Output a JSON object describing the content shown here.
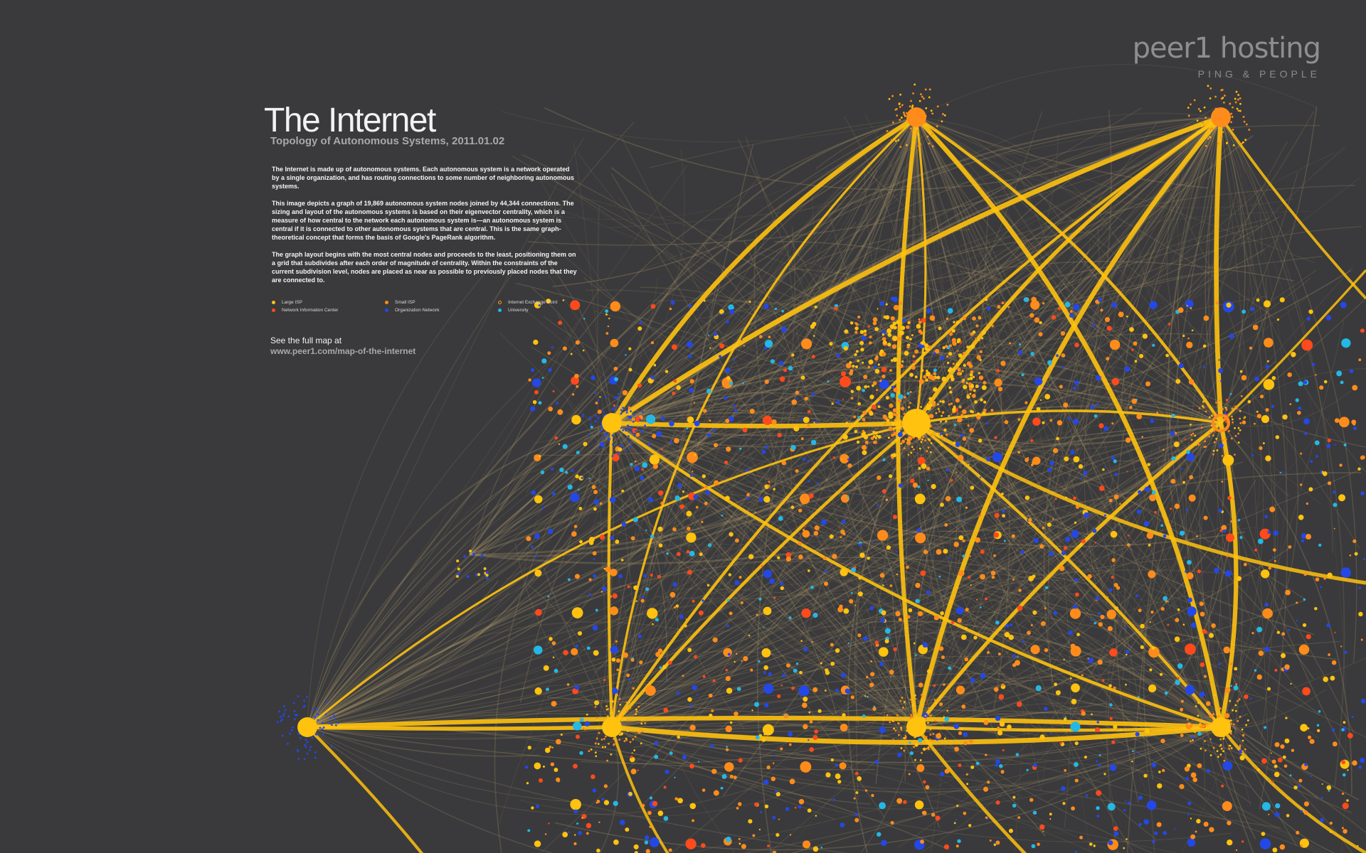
{
  "logo": {
    "wordmark": "peer1 hosting",
    "tagline": "PING & PEOPLE"
  },
  "title": "The Internet",
  "subtitle": "Topology of Autonomous Systems, 2011.01.02",
  "paragraphs": [
    "The Internet is made up of autonomous systems. Each autonomous system is a network operated by a single organization, and has routing connections to some number of neighboring autonomous systems.",
    "This image depicts a graph of 19,869 autonomous system nodes joined by 44,344 connections. The sizing and layout of the autonomous systems is based on their eigenvector centrality, which is a measure of how central to the network each autonomous system is—an autonomous system is central if it is connected to other autonomous systems that are central. This is the same graph-theoretical concept that forms the basis of Google's PageRank algorithm.",
    "The graph layout begins with the most central nodes and proceeds to the least, positioning them on a grid that subdivides after each order of magnitude of centrality. Within the constraints of the current subdivision level, nodes are placed as near as possible to previously placed nodes that they are connected to."
  ],
  "legend": [
    {
      "label": "Large ISP",
      "color": "#ffc20e"
    },
    {
      "label": "Small ISP",
      "color": "#ff8c1a"
    },
    {
      "label": "Internet Exchange Point",
      "color": "#ff9c1a"
    },
    {
      "label": "Network Information Center",
      "color": "#ff4a1c"
    },
    {
      "label": "Organization Network",
      "color": "#2448e6"
    },
    {
      "label": "University",
      "color": "#24b8e6"
    }
  ],
  "cta": {
    "line1": "See the full map at",
    "line2": "www.peer1.com/map-of-the-internet"
  },
  "colors": {
    "background": "#3a3a3c",
    "edge": "#b8a06a",
    "hub_edge": "#ffc20e"
  }
}
